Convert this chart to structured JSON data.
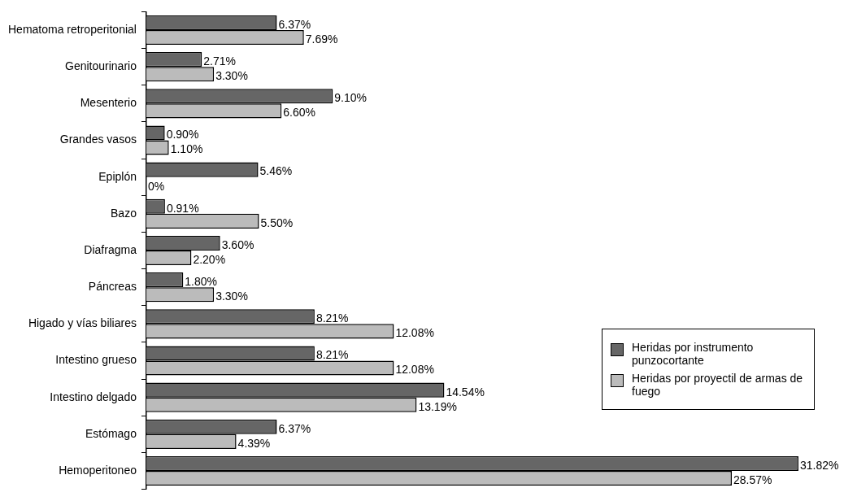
{
  "chart_data": {
    "type": "bar",
    "orientation": "horizontal",
    "categories": [
      "Hematoma retroperitonial",
      "Genitourinario",
      "Mesenterio",
      "Grandes vasos",
      "Epiplón",
      "Bazo",
      "Diafragma",
      "Páncreas",
      "Higado y vías biliares",
      "Intestino grueso",
      "Intestino delgado",
      "Estómago",
      "Hemoperitoneo"
    ],
    "series": [
      {
        "name": "Heridas por instrumento punzocortante",
        "color": "#666666",
        "values": [
          6.37,
          2.71,
          9.1,
          0.9,
          5.46,
          0.91,
          3.6,
          1.8,
          8.21,
          8.21,
          14.54,
          6.37,
          31.82
        ],
        "value_labels": [
          "6.37%",
          "2.71%",
          "9.10%",
          "0.90%",
          "5.46%",
          "0.91%",
          "3.60%",
          "1.80%",
          "8.21%",
          "8.21%",
          "14.54%",
          "6.37%",
          "31.82%"
        ]
      },
      {
        "name": "Heridas por proyectil de armas de fuego",
        "color": "#bbbbbb",
        "values": [
          7.69,
          3.3,
          6.6,
          1.1,
          0,
          5.5,
          2.2,
          3.3,
          12.08,
          12.08,
          13.19,
          4.39,
          28.57
        ],
        "value_labels": [
          "7.69%",
          "3.30%",
          "6.60%",
          "1.10%",
          "0%",
          "5.50%",
          "2.20%",
          "3.30%",
          "12.08%",
          "12.08%",
          "13.19%",
          "4.39%",
          "28.57%"
        ]
      }
    ],
    "legend": "bottom right",
    "grid": false
  }
}
